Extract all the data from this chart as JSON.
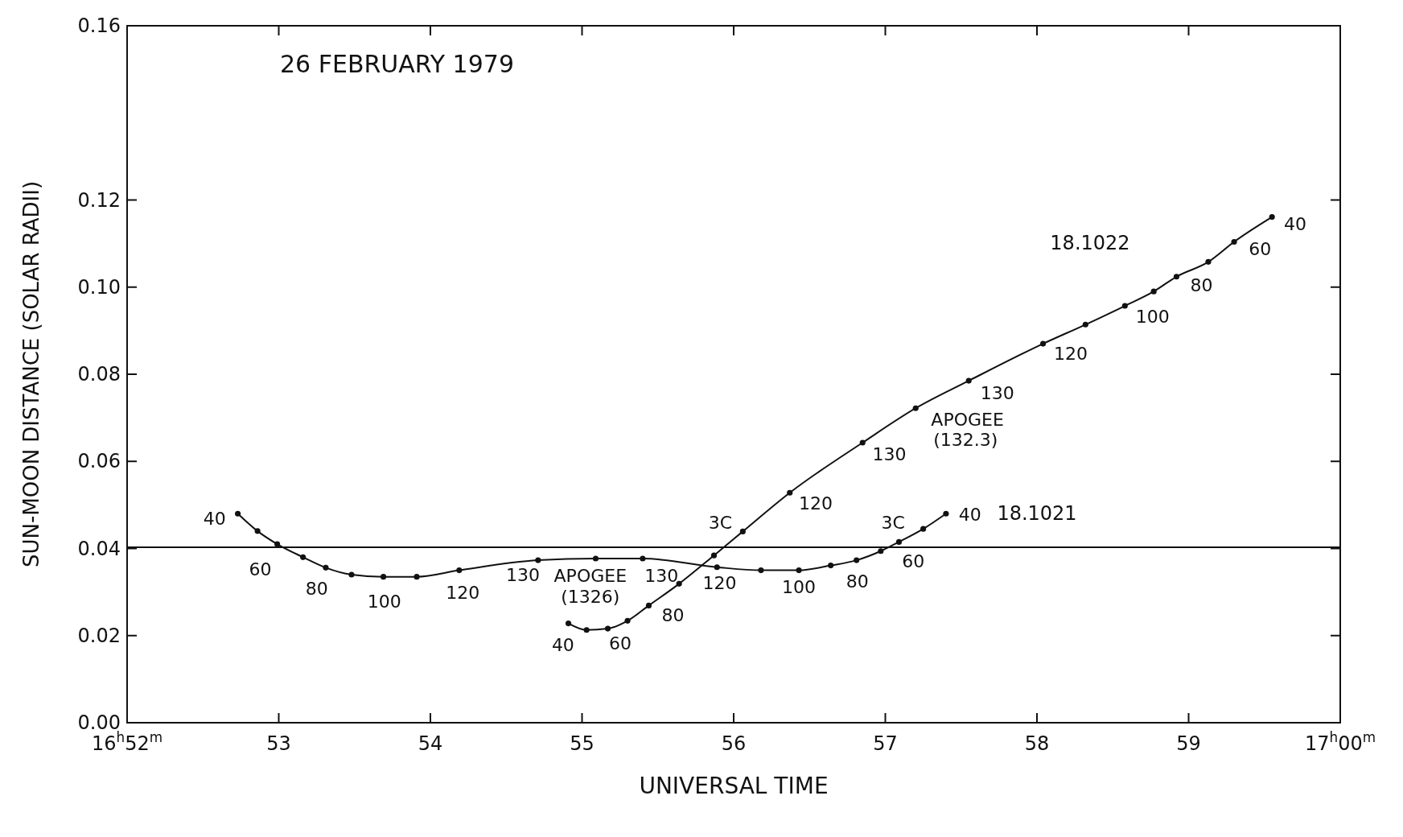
{
  "chart_data": {
    "type": "line",
    "title": "26 FEBRUARY 1979",
    "xlabel": "UNIVERSAL TIME",
    "ylabel": "SUN-MOON DISTANCE (SOLAR RADII)",
    "xlim": [
      52,
      60
    ],
    "ylim": [
      0,
      0.16
    ],
    "xticks": [
      {
        "value": 52,
        "label": "16$^{h}$52$^{m}$"
      },
      53,
      54,
      55,
      56,
      57,
      58,
      59,
      {
        "value": 60,
        "label": "17$^{h}$00$^{m}$"
      }
    ],
    "yticks": [
      {
        "value": 0,
        "label": "0.00"
      },
      {
        "value": 0.02,
        "label": "0.02"
      },
      {
        "value": 0.04,
        "label": "0.04"
      },
      {
        "value": 0.06,
        "label": "0.06"
      },
      {
        "value": 0.08,
        "label": "0.08"
      },
      {
        "value": 0.1,
        "label": "0.10"
      },
      {
        "value": 0.12,
        "label": "0.12"
      },
      {
        "value": 0.16,
        "label": "0.16"
      }
    ],
    "marker": "circle",
    "grid": false,
    "series": [
      {
        "name": "18.1021",
        "color": "#111111",
        "x": [
          52.73,
          52.86,
          52.99,
          53.16,
          53.31,
          53.48,
          53.69,
          53.91,
          54.19,
          54.71,
          55.09,
          55.4,
          55.89,
          56.18,
          56.43,
          56.64,
          56.81,
          56.97,
          57.09,
          57.25,
          57.4
        ],
        "values": [
          0.048,
          0.044,
          0.041,
          0.038,
          0.0356,
          0.034,
          0.0335,
          0.0335,
          0.035,
          0.0373,
          0.0377,
          0.0377,
          0.0357,
          0.035,
          0.035,
          0.0361,
          0.0373,
          0.0394,
          0.0415,
          0.0445,
          0.048
        ]
      },
      {
        "name": "18.1022",
        "color": "#111111",
        "x": [
          54.91,
          55.03,
          55.17,
          55.3,
          55.44,
          55.64,
          55.87,
          56.06,
          56.37,
          56.85,
          57.2,
          57.55,
          58.04,
          58.32,
          58.58,
          58.77,
          58.92,
          59.13,
          59.3,
          59.55
        ],
        "values": [
          0.0228,
          0.0213,
          0.0216,
          0.0234,
          0.0269,
          0.0319,
          0.0384,
          0.0439,
          0.0528,
          0.0643,
          0.0722,
          0.0785,
          0.087,
          0.0914,
          0.0957,
          0.099,
          0.1024,
          0.1058,
          0.1104,
          0.1161
        ]
      }
    ],
    "ref_lines": [
      {
        "axis": "y",
        "value": 0.0403,
        "color": "#111111"
      }
    ],
    "annotations": [
      {
        "text": "40",
        "x": 52.73,
        "y": 0.048
      },
      {
        "text": "60",
        "x": 52.99,
        "y": 0.041
      },
      {
        "text": "80",
        "x": 53.31,
        "y": 0.0356
      },
      {
        "text": "100",
        "x": 53.69,
        "y": 0.0335
      },
      {
        "text": "120",
        "x": 54.19,
        "y": 0.035
      },
      {
        "text": "130",
        "x": 54.71,
        "y": 0.0373
      },
      {
        "text": "APOGEE",
        "x": 55.09,
        "y": 0.0377
      },
      {
        "text": "(1326)",
        "x": 55.09,
        "y": 0.0377
      },
      {
        "text": "130",
        "x": 55.4,
        "y": 0.0377
      },
      {
        "text": "120",
        "x": 55.89,
        "y": 0.0357
      },
      {
        "text": "100",
        "x": 56.43,
        "y": 0.035
      },
      {
        "text": "80",
        "x": 56.81,
        "y": 0.0373
      },
      {
        "text": "60",
        "x": 57.09,
        "y": 0.0415
      },
      {
        "text": "40",
        "x": 57.4,
        "y": 0.048
      },
      {
        "text": "3C",
        "x": 55.93,
        "y": 0.0403
      },
      {
        "text": "3C",
        "x": 57.04,
        "y": 0.0403
      },
      {
        "text": "40",
        "x": 54.91,
        "y": 0.0228
      },
      {
        "text": "60",
        "x": 55.17,
        "y": 0.0216
      },
      {
        "text": "80",
        "x": 55.44,
        "y": 0.0269
      },
      {
        "text": "120",
        "x": 56.37,
        "y": 0.0528
      },
      {
        "text": "130",
        "x": 56.85,
        "y": 0.0643
      },
      {
        "text": "APOGEE",
        "x": 57.2,
        "y": 0.0722
      },
      {
        "text": "(132.3)",
        "x": 57.2,
        "y": 0.0722
      },
      {
        "text": "130",
        "x": 57.55,
        "y": 0.0785
      },
      {
        "text": "120",
        "x": 58.04,
        "y": 0.087
      },
      {
        "text": "100",
        "x": 58.58,
        "y": 0.0957
      },
      {
        "text": "80",
        "x": 58.92,
        "y": 0.1024
      },
      {
        "text": "60",
        "x": 59.3,
        "y": 0.1104
      },
      {
        "text": "40",
        "x": 59.55,
        "y": 0.1161
      }
    ]
  }
}
